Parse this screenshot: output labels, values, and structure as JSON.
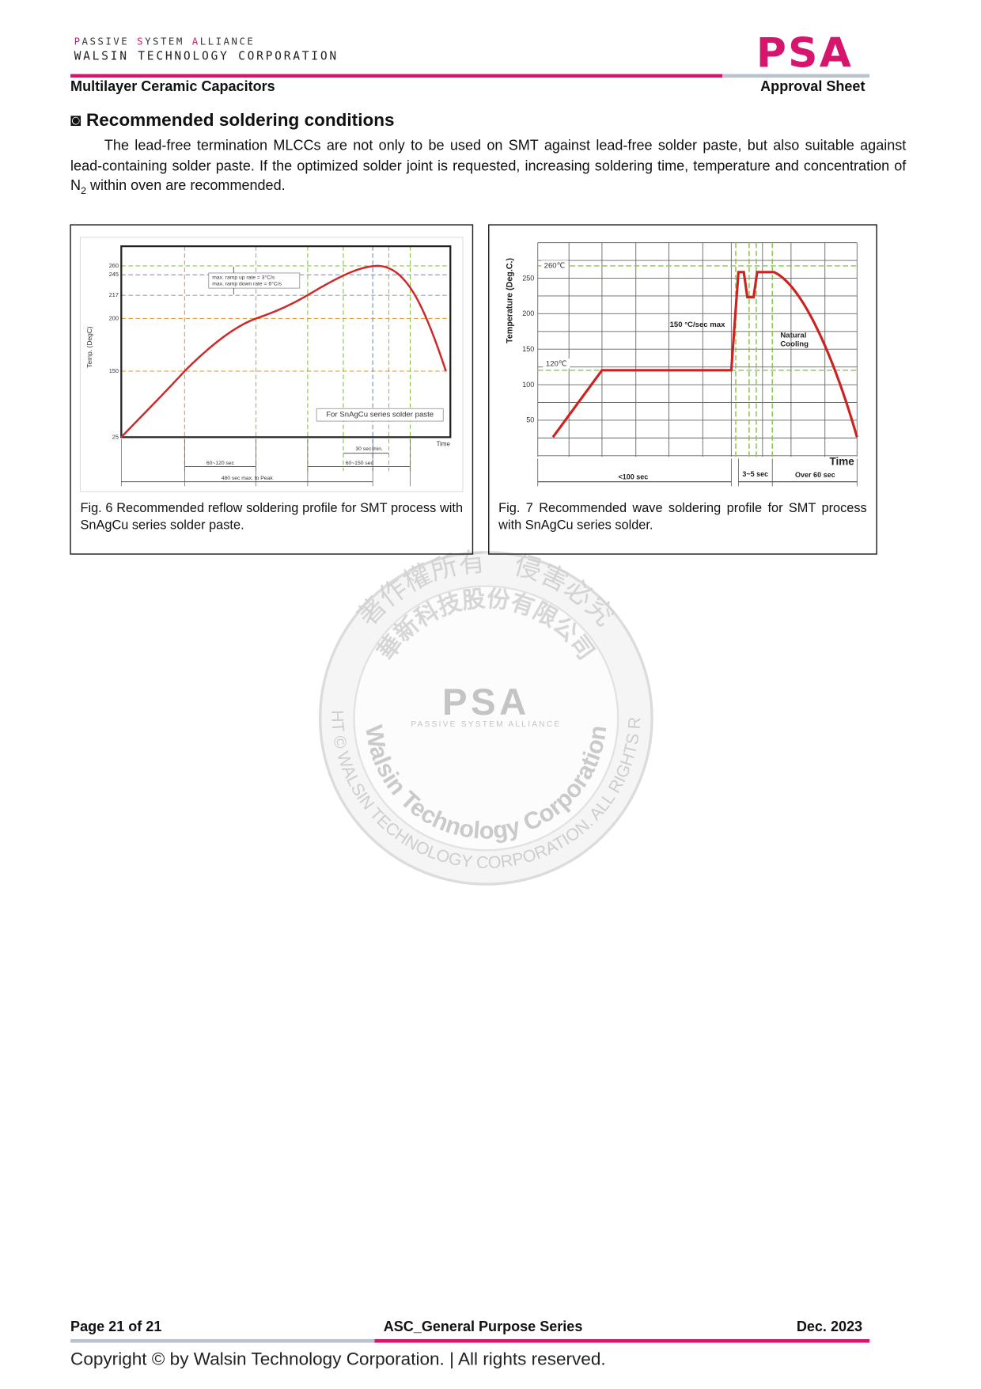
{
  "header": {
    "alliance": "PASSIVE SYSTEM ALLIANCE",
    "company": "WALSIN TECHNOLOGY CORPORATION",
    "logo": "PSA",
    "product": "Multilayer Ceramic Capacitors",
    "doc_type": "Approval Sheet"
  },
  "section": {
    "marker": "◙",
    "title": "Recommended soldering conditions",
    "paragraph": {
      "text": "The lead-free termination MLCCs are not only to be used on SMT against lead-free solder paste, but also suitable against lead-containing solder paste. If the optimized solder joint is requested, increasing soldering time, temperature and concentration of N",
      "subscript": "2",
      "tail": " within oven are recommended."
    }
  },
  "figures": [
    {
      "y_label": "Temp. (DegC)",
      "y_ticks": [
        260,
        245,
        217,
        200,
        150,
        25
      ],
      "x_label": "Time",
      "ramp_note": [
        "max. ramp up rate = 3°C/s",
        "max. ramp down rate = 6°C/s"
      ],
      "legend": "For SnAgCu series solder paste",
      "spans": [
        "30 sec min.",
        "60~120 sec",
        "60~150 sec",
        "480 sec max. to Peak"
      ],
      "caption": "Fig. 6 Recommended reflow soldering profile for SMT process with SnAgCu series solder paste."
    },
    {
      "y_label": "Temperature (Deg.C.)",
      "y_ticks": [
        250,
        200,
        150,
        100,
        50
      ],
      "levels": [
        "260℃",
        "120℃"
      ],
      "x_label": "Time",
      "ramp_note": "150 °C/sec max",
      "cooling_note": [
        "Natural",
        "Cooling"
      ],
      "spans": [
        "<100 sec",
        "3~5 sec",
        "Over 60 sec"
      ],
      "caption": "Fig. 7 Recommended wave soldering profile for SMT process with SnAgCu series solder."
    }
  ],
  "watermark": {
    "top_arc": "著作權所有　侵害必究",
    "inner_arc": "華新科技股份有限公司",
    "logo": "PSA",
    "alliance": "PASSIVE SYSTEM ALLIANCE",
    "company": "Walsin Technology Corporation",
    "copyright": "COPYRIGHT © WALSIN TECHNOLOGY CORPORATION. ALL RIGHTS RESERVED."
  },
  "footer": {
    "page": "Page 21 of 21",
    "series": "ASC_General Purpose Series",
    "date": "Dec. 2023",
    "copyright": "Copyright © by Walsin Technology Corporation. | All rights reserved."
  }
}
